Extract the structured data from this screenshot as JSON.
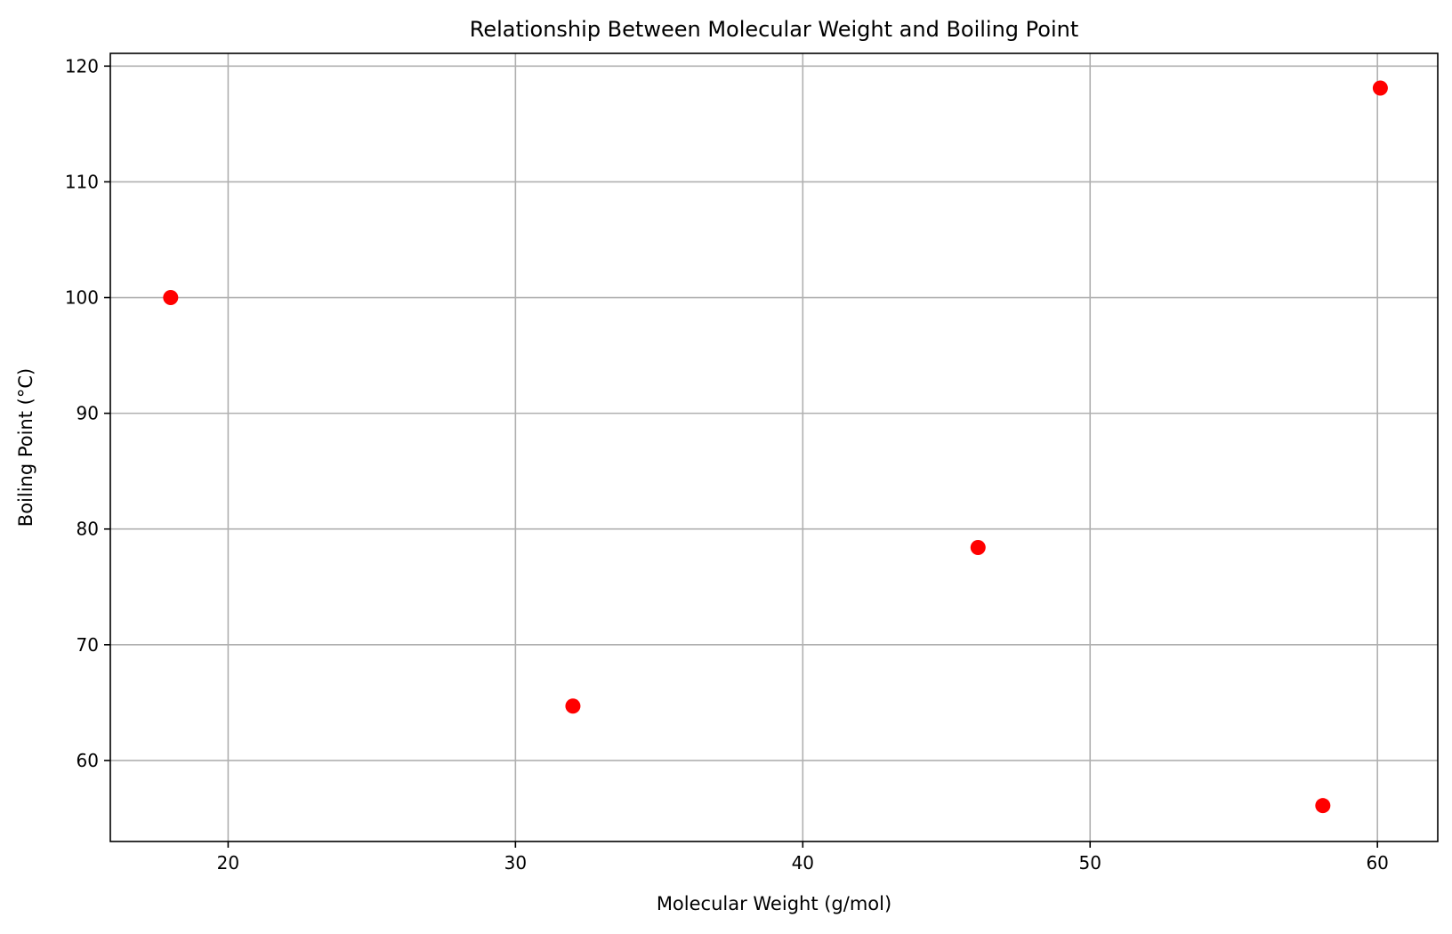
{
  "chart_data": {
    "type": "scatter",
    "title": "Relationship Between Molecular Weight and Boiling Point",
    "xlabel": "Molecular Weight (g/mol)",
    "ylabel": "Boiling Point (°C)",
    "xlim": [
      15.9,
      62.1
    ],
    "ylim": [
      53,
      121.1
    ],
    "xticks": [
      20,
      30,
      40,
      50,
      60
    ],
    "yticks": [
      60,
      70,
      80,
      90,
      100,
      110,
      120
    ],
    "grid": true,
    "marker_color": "#ff0000",
    "series": [
      {
        "points": [
          {
            "x": 18.0,
            "y": 100.0
          },
          {
            "x": 32.0,
            "y": 64.7
          },
          {
            "x": 46.1,
            "y": 78.4
          },
          {
            "x": 58.1,
            "y": 56.1
          },
          {
            "x": 60.1,
            "y": 118.1
          }
        ]
      }
    ]
  }
}
